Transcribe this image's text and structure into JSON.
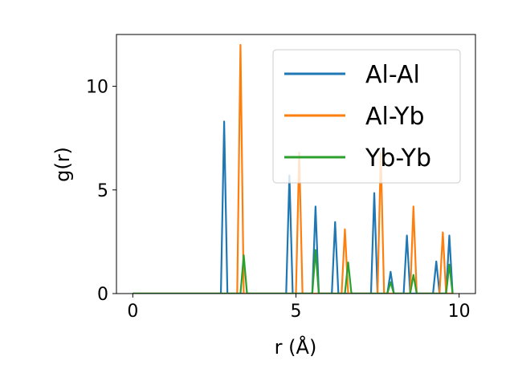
{
  "chart_data": {
    "type": "line",
    "xlabel": "r (Å)",
    "ylabel": "g(r)",
    "xlim": [
      -0.5,
      10.5
    ],
    "ylim": [
      0,
      12.5
    ],
    "xticks": [
      {
        "value": 0,
        "label": "0"
      },
      {
        "value": 5,
        "label": "5"
      },
      {
        "value": 10,
        "label": "10"
      }
    ],
    "yticks": [
      {
        "value": 0,
        "label": "0"
      },
      {
        "value": 5,
        "label": "5"
      },
      {
        "value": 10,
        "label": "10"
      }
    ],
    "grid": false,
    "legend_position": "top-right",
    "series": [
      {
        "name": "Al-Al",
        "color": "#1f77b4",
        "x": [
          0,
          2.7,
          2.8,
          2.9,
          4.7,
          4.8,
          4.9,
          5.5,
          5.6,
          5.7,
          6.1,
          6.2,
          6.3,
          7.3,
          7.4,
          7.5,
          7.8,
          7.9,
          8.0,
          8.3,
          8.4,
          8.5,
          9.2,
          9.3,
          9.4,
          9.6,
          9.7,
          9.8
        ],
        "y": [
          0,
          0,
          8.3,
          0,
          0,
          5.7,
          0,
          0,
          4.2,
          0,
          0,
          3.45,
          0,
          0,
          4.85,
          0,
          0,
          1.05,
          0,
          0,
          2.8,
          0,
          0,
          1.55,
          0,
          0,
          2.8,
          0
        ]
      },
      {
        "name": "Al-Yb",
        "color": "#ff7f0e",
        "x": [
          0,
          3.2,
          3.3,
          3.4,
          5.0,
          5.1,
          5.2,
          6.4,
          6.5,
          6.6,
          7.5,
          7.6,
          7.7,
          8.5,
          8.6,
          8.7,
          9.4,
          9.5,
          9.6,
          9.8
        ],
        "y": [
          0,
          0,
          12.0,
          0,
          0,
          6.8,
          0,
          0,
          3.1,
          0,
          0,
          6.8,
          0,
          0,
          4.2,
          0,
          0,
          2.95,
          0,
          0
        ]
      },
      {
        "name": "Yb-Yb",
        "color": "#2ca02c",
        "x": [
          0,
          3.3,
          3.4,
          3.5,
          5.5,
          5.6,
          5.7,
          6.5,
          6.6,
          6.7,
          7.8,
          7.9,
          8.0,
          8.5,
          8.6,
          8.7,
          9.6,
          9.7,
          9.8
        ],
        "y": [
          0,
          0,
          1.85,
          0,
          0,
          2.1,
          0,
          0,
          1.5,
          0,
          0,
          0.55,
          0,
          0,
          0.9,
          0,
          0,
          1.4,
          0
        ]
      }
    ]
  }
}
